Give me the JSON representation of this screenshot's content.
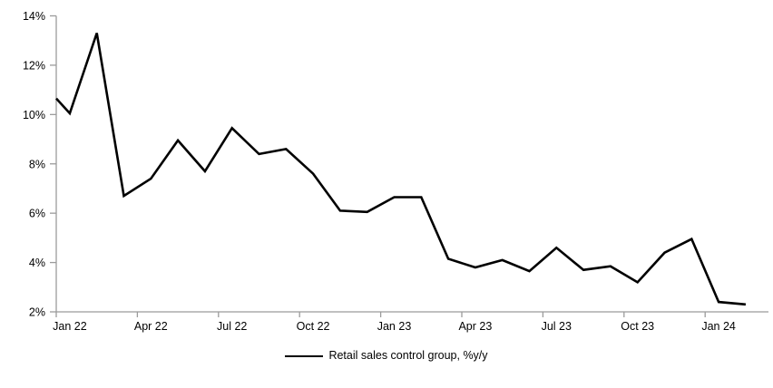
{
  "chart_data": {
    "type": "line",
    "title": "",
    "categories": [
      "Jan 22",
      "Feb 22",
      "Mar 22",
      "Apr 22",
      "May 22",
      "Jun 22",
      "Jul 22",
      "Aug 22",
      "Sep 22",
      "Oct 22",
      "Nov 22",
      "Dec 22",
      "Jan 23",
      "Feb 23",
      "Mar 23",
      "Apr 23",
      "May 23",
      "Jun 23",
      "Jul 23",
      "Aug 23",
      "Sep 23",
      "Oct 23",
      "Nov 23",
      "Dec 23",
      "Jan 24",
      "Feb 24"
    ],
    "series": [
      {
        "name": "Retail sales control group, %y/y",
        "color": "#000000",
        "values": [
          10.05,
          13.3,
          6.7,
          7.4,
          8.95,
          7.7,
          9.45,
          8.4,
          8.6,
          7.6,
          6.1,
          6.05,
          6.65,
          6.65,
          4.15,
          3.8,
          4.1,
          3.65,
          4.6,
          3.7,
          3.85,
          3.2,
          4.4,
          4.95,
          2.4,
          2.3
        ],
        "leading_edge_value": 10.65
      }
    ],
    "x_tick_labels": [
      "Jan 22",
      "Apr 22",
      "Jul 22",
      "Oct 22",
      "Jan 23",
      "Apr 23",
      "Jul 23",
      "Oct 23",
      "Jan 24"
    ],
    "x_tick_interval_months": 3,
    "y_tick_labels": [
      "14%",
      "12%",
      "10%",
      "8%",
      "6%",
      "4%",
      "2%"
    ],
    "ylim": [
      2,
      14
    ],
    "grid": "off",
    "legend_position": "bottom-center",
    "axis_color": "#9b9b9b",
    "text_color": "#000000",
    "line_width": 2.6
  },
  "legend": {
    "label": "Retail sales control group, %y/y"
  }
}
